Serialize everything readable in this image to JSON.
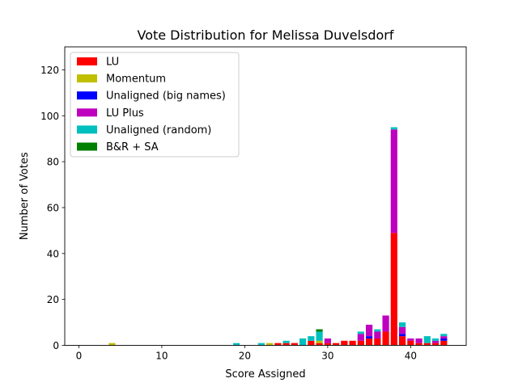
{
  "chart_data": {
    "type": "bar",
    "stacked": true,
    "title": "Vote Distribution for Melissa Duvelsdorf",
    "xlabel": "Score Assigned",
    "ylabel": "Number of Votes",
    "xlim": [
      -1.7,
      46.7
    ],
    "ylim": [
      0,
      130
    ],
    "xticks": [
      0,
      10,
      20,
      30,
      40
    ],
    "yticks": [
      0,
      20,
      40,
      60,
      80,
      100,
      120
    ],
    "grid": false,
    "legend_position": "top-left",
    "x": [
      4,
      19,
      22,
      23,
      24,
      25,
      26,
      27,
      28,
      29,
      30,
      31,
      32,
      33,
      34,
      35,
      36,
      37,
      38,
      39,
      40,
      41,
      42,
      43,
      44
    ],
    "series": [
      {
        "name": "LU",
        "color": "#ff0000",
        "values": [
          0,
          0,
          0,
          0,
          1,
          1,
          1,
          0,
          2,
          1,
          1,
          1,
          2,
          2,
          2,
          3,
          3,
          6,
          49,
          4,
          2,
          1,
          1,
          1,
          2
        ]
      },
      {
        "name": "Momentum",
        "color": "#bfbf00",
        "values": [
          1,
          0,
          0,
          1,
          0,
          0,
          0,
          0,
          0,
          1,
          0,
          0,
          0,
          0,
          0,
          0,
          0,
          0,
          0,
          0,
          0,
          0,
          0,
          0,
          0
        ]
      },
      {
        "name": "Unaligned (big names)",
        "color": "#0000ff",
        "values": [
          0,
          0,
          0,
          0,
          0,
          0,
          0,
          0,
          0,
          0,
          0,
          0,
          0,
          0,
          0,
          1,
          0,
          0,
          0,
          1,
          0,
          0,
          0,
          0,
          1
        ]
      },
      {
        "name": "LU Plus",
        "color": "#bf00bf",
        "values": [
          0,
          0,
          0,
          0,
          0,
          0,
          0,
          0,
          0,
          0,
          2,
          0,
          0,
          0,
          3,
          5,
          3,
          7,
          45,
          3,
          1,
          2,
          0,
          1,
          1
        ]
      },
      {
        "name": "Unaligned (random)",
        "color": "#00bfbf",
        "values": [
          0,
          1,
          1,
          0,
          0,
          1,
          0,
          3,
          2,
          4,
          0,
          0,
          0,
          0,
          1,
          0,
          1,
          0,
          1,
          2,
          0,
          0,
          3,
          1,
          1
        ]
      },
      {
        "name": "B&R + SA",
        "color": "#008000",
        "values": [
          0,
          0,
          0,
          0,
          0,
          0,
          0,
          0,
          0,
          1,
          0,
          0,
          0,
          0,
          0,
          0,
          0,
          0,
          0,
          0,
          0,
          0,
          0,
          0,
          0
        ]
      }
    ]
  }
}
